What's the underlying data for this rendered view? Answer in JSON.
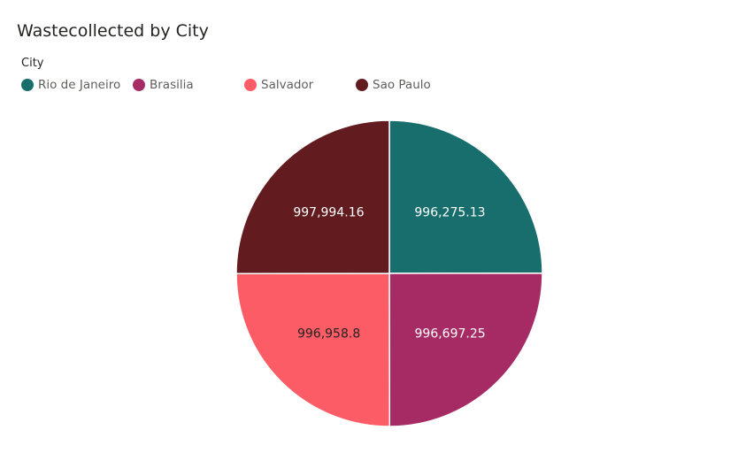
{
  "chart_data": {
    "type": "pie",
    "title": "Wastecollected by City",
    "legend_title": "City",
    "legend_position": "top-left",
    "categories": [
      "Rio de Janeiro",
      "Brasilia",
      "Salvador",
      "Sao Paulo"
    ],
    "values": [
      996275.13,
      996697.25,
      996958.8,
      997994.16
    ],
    "data_labels": [
      "996,275.13",
      "996,697.25",
      "996,958.8",
      "997,994.16"
    ],
    "colors": [
      "#176e6c",
      "#a62b64",
      "#fc5c66",
      "#621c1f"
    ],
    "label_colors": [
      "#ffffff",
      "#ffffff",
      "#252423",
      "#ffffff"
    ]
  }
}
